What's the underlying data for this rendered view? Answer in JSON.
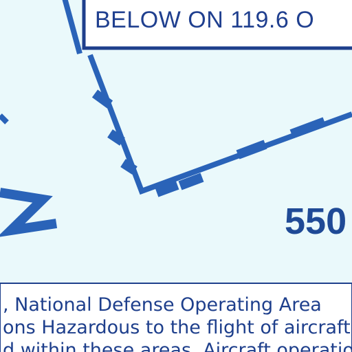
{
  "frequency_box": {
    "text": "BELOW ON 119.6 O"
  },
  "altitude_label": {
    "text": "550"
  },
  "notice": {
    "lines": [
      ", National Defense Operating Area",
      "ons Hazardous to the flight of aircraft",
      "d within these areas. Aircraft operatio"
    ]
  },
  "colors": {
    "background": "#eaf9fb",
    "boundary_blue": "#2a63b8",
    "text_blue": "#1f3f8f",
    "box_border": "#1e3f8c"
  }
}
